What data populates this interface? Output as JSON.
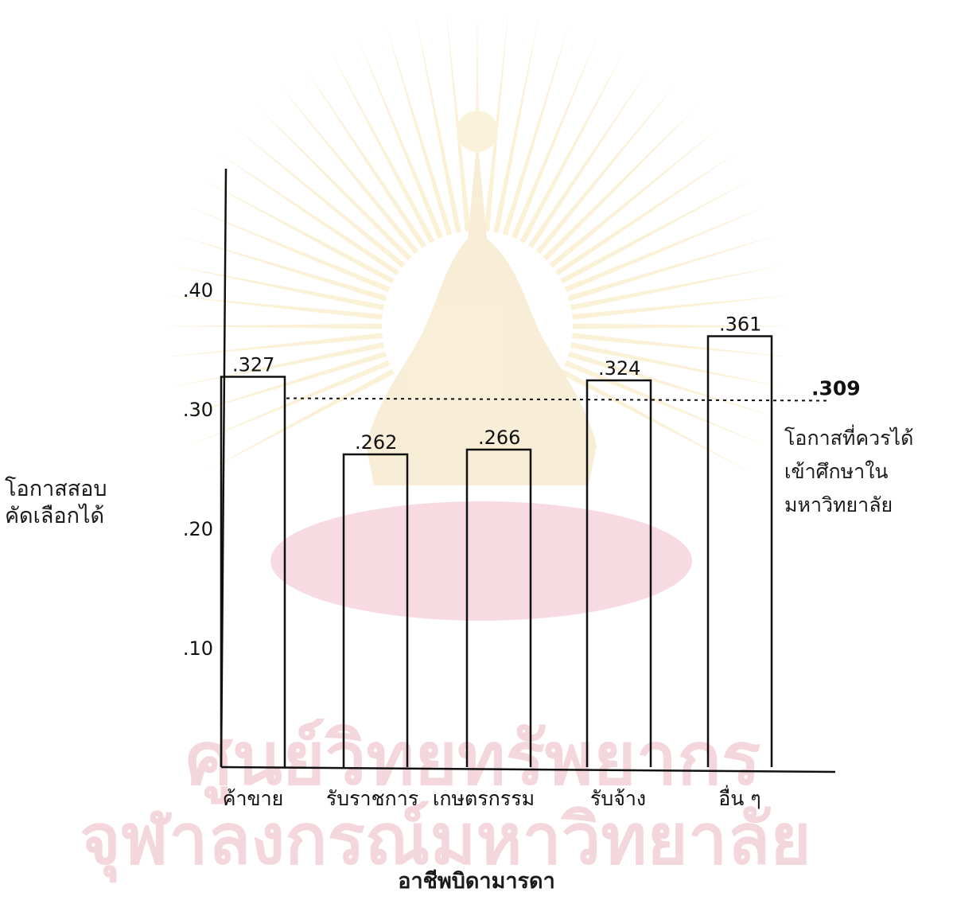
{
  "chart_data": {
    "type": "bar",
    "categories": [
      "ค้าขาย",
      "รับราชการ",
      "เกษตรกรรม",
      "รับจ้าง",
      "อื่น ๆ"
    ],
    "values": [
      0.327,
      0.262,
      0.266,
      0.324,
      0.361
    ],
    "value_labels": [
      ".327",
      ".262",
      ".266",
      ".324",
      ".361"
    ],
    "ylim": [
      0,
      0.5
    ],
    "yticks": [
      0.1,
      0.2,
      0.3,
      0.4
    ],
    "ytick_labels": [
      ".10",
      ".20",
      ".30",
      ".40"
    ],
    "ylabel_lines": [
      "โอกาสสอบ",
      "คัดเลือกได้"
    ],
    "xlabel": "อาชีพบิดามารดา",
    "reference_line": {
      "value": 0.309,
      "label": ".309",
      "note_lines": [
        "โอกาสที่ควรได้",
        "เข้าศึกษาใน",
        "มหาวิทยาลัย"
      ]
    },
    "grid": false,
    "legend": "none"
  }
}
